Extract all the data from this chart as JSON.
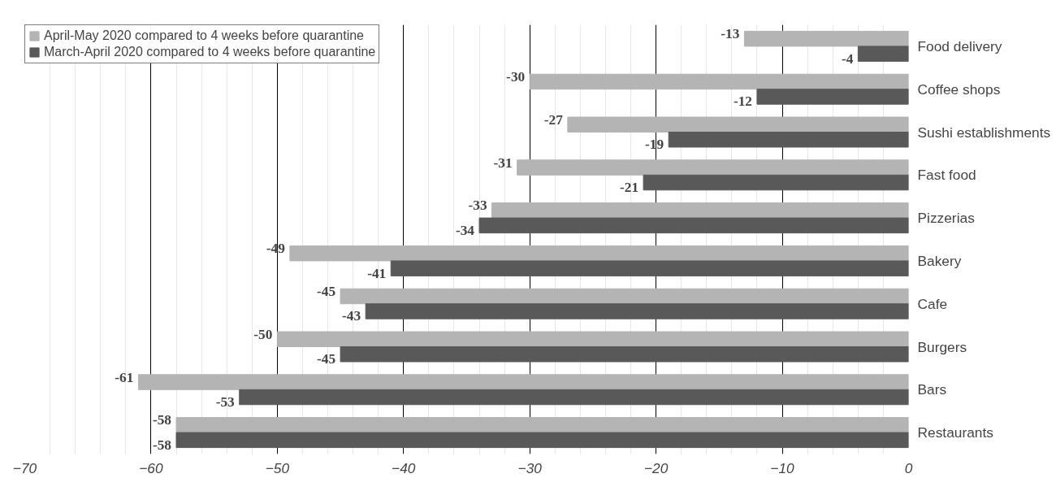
{
  "chart_data": {
    "type": "bar",
    "orientation": "horizontal",
    "categories": [
      "Food delivery",
      "Coffee shops",
      "Sushi establishments",
      "Fast food",
      "Pizzerias",
      "Bakery",
      "Cafe",
      "Burgers",
      "Bars",
      "Restaurants"
    ],
    "series": [
      {
        "name": "April-May 2020 compared to 4 weeks before quarantine",
        "color": "#b4b4b4",
        "values": [
          -13,
          -30,
          -27,
          -31,
          -33,
          -49,
          -45,
          -50,
          -61,
          -58
        ]
      },
      {
        "name": "March-April 2020 compared to 4 weeks before quarantine",
        "color": "#595959",
        "values": [
          -4,
          -12,
          -19,
          -21,
          -34,
          -41,
          -43,
          -45,
          -53,
          -58
        ]
      }
    ],
    "xlim": [
      -70,
      0
    ],
    "xticks": [
      -70,
      -60,
      -50,
      -40,
      -30,
      -20,
      -10,
      0
    ],
    "grid": "x",
    "legend": "top left",
    "data_labels": true
  }
}
